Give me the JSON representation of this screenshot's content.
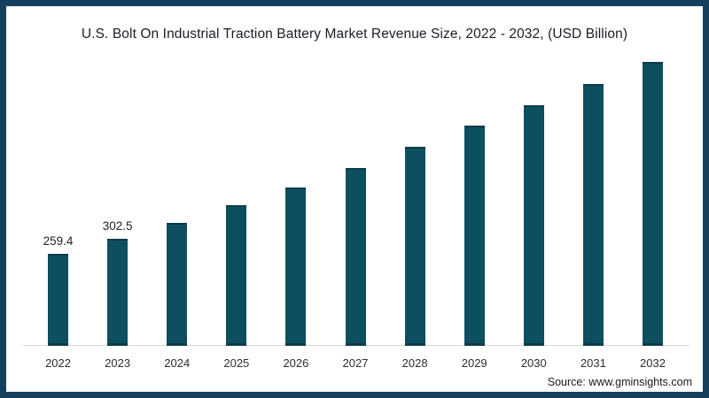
{
  "frame": {
    "border_color": "#14405e",
    "background": "#ffffff"
  },
  "chart_data": {
    "type": "bar",
    "title": "U.S. Bolt On Industrial Traction Battery Market Revenue Size, 2022 - 2032, (USD Billion)",
    "categories": [
      "2022",
      "2023",
      "2024",
      "2025",
      "2026",
      "2027",
      "2028",
      "2029",
      "2030",
      "2031",
      "2032"
    ],
    "values": [
      259.4,
      302.5,
      348,
      398,
      448,
      503,
      562,
      622,
      680,
      740,
      802
    ],
    "value_labels_shown": [
      "259.4",
      "302.5",
      "",
      "",
      "",
      "",
      "",
      "",
      "",
      "",
      ""
    ],
    "xlabel": "",
    "ylabel": "",
    "ylim": [
      0,
      830
    ],
    "grid": false,
    "legend": false,
    "bar_color": "#0e4f5f",
    "bar_edge_color": "#0b3c49",
    "axis_line_color": "#d9d9d9"
  },
  "source": {
    "text": "Source: www.gminsights.com"
  }
}
